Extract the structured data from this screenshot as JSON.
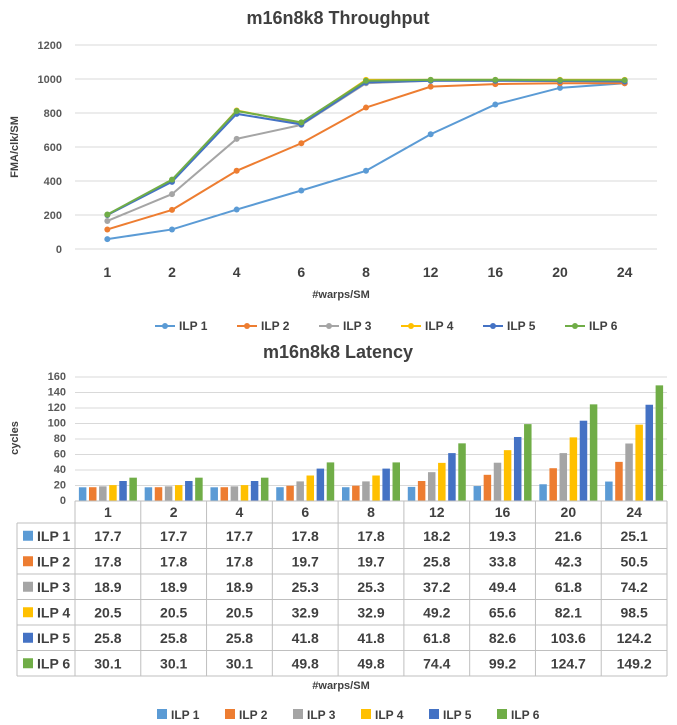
{
  "chart_data": [
    {
      "type": "line",
      "title": "m16n8k8 Throughput",
      "xlabel": "#warps/SM",
      "ylabel": "FMA/clk/SM",
      "categories": [
        "1",
        "2",
        "4",
        "6",
        "8",
        "12",
        "16",
        "20",
        "24"
      ],
      "ylim": [
        0,
        1200
      ],
      "yticks": [
        "0",
        "200",
        "400",
        "600",
        "800",
        "1000",
        "1200"
      ],
      "grid": true,
      "legend_position": "bottom",
      "series": [
        {
          "name": "ILP 1",
          "color": "#5b9bd5",
          "values": [
            58,
            115,
            232,
            344,
            460,
            675,
            850,
            948,
            975
          ]
        },
        {
          "name": "ILP 2",
          "color": "#ed7d31",
          "values": [
            115,
            230,
            460,
            622,
            832,
            955,
            970,
            975,
            975
          ]
        },
        {
          "name": "ILP 3",
          "color": "#a5a5a5",
          "values": [
            165,
            323,
            648,
            730,
            975,
            990,
            990,
            990,
            990
          ]
        },
        {
          "name": "ILP 4",
          "color": "#ffc000",
          "values": [
            200,
            400,
            815,
            740,
            995,
            995,
            995,
            995,
            995
          ]
        },
        {
          "name": "ILP 5",
          "color": "#4472c4",
          "values": [
            200,
            395,
            795,
            733,
            980,
            990,
            990,
            988,
            985
          ]
        },
        {
          "name": "ILP 6",
          "color": "#70ad47",
          "values": [
            203,
            408,
            812,
            745,
            990,
            995,
            995,
            993,
            993
          ]
        }
      ]
    },
    {
      "type": "bar",
      "title": "m16n8k8 Latency",
      "xlabel": "#warps/SM",
      "ylabel": "cycles",
      "categories": [
        "1",
        "2",
        "4",
        "6",
        "8",
        "12",
        "16",
        "20",
        "24"
      ],
      "ylim": [
        0,
        160
      ],
      "yticks": [
        "0",
        "20",
        "40",
        "60",
        "80",
        "100",
        "120",
        "140",
        "160"
      ],
      "grid": true,
      "legend_position": "bottom",
      "data_table": true,
      "series": [
        {
          "name": "ILP 1",
          "color": "#5b9bd5",
          "values": [
            17.7,
            17.7,
            17.7,
            17.8,
            17.8,
            18.2,
            19.3,
            21.6,
            25.1
          ]
        },
        {
          "name": "ILP 2",
          "color": "#ed7d31",
          "values": [
            17.8,
            17.8,
            17.8,
            19.7,
            19.7,
            25.8,
            33.8,
            42.3,
            50.5
          ]
        },
        {
          "name": "ILP 3",
          "color": "#a5a5a5",
          "values": [
            18.9,
            18.9,
            18.9,
            25.3,
            25.3,
            37.2,
            49.4,
            61.8,
            74.2
          ]
        },
        {
          "name": "ILP 4",
          "color": "#ffc000",
          "values": [
            20.5,
            20.5,
            20.5,
            32.9,
            32.9,
            49.2,
            65.6,
            82.1,
            98.5
          ]
        },
        {
          "name": "ILP 5",
          "color": "#4472c4",
          "values": [
            25.8,
            25.8,
            25.8,
            41.8,
            41.8,
            61.8,
            82.6,
            103.6,
            124.2
          ]
        },
        {
          "name": "ILP 6",
          "color": "#70ad47",
          "values": [
            30.1,
            30.1,
            30.1,
            49.8,
            49.8,
            74.4,
            99.2,
            124.7,
            149.2
          ]
        }
      ]
    }
  ]
}
